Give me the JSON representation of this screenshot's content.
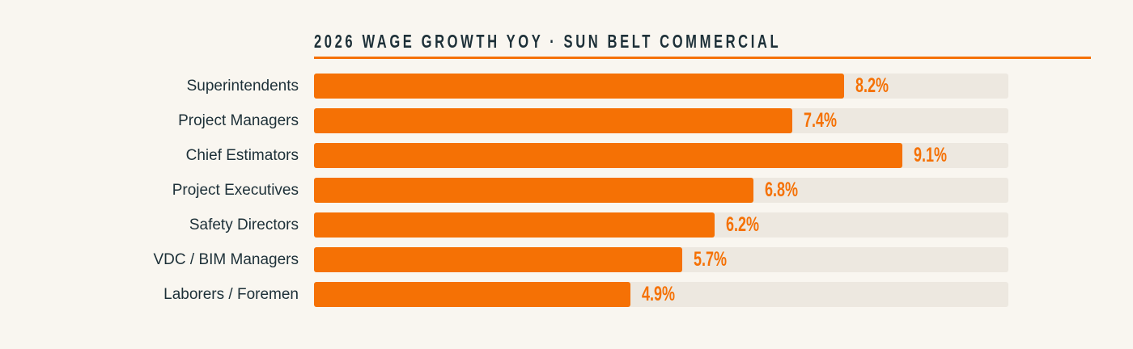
{
  "chart_data": {
    "type": "bar",
    "orientation": "horizontal",
    "title": "2026 WAGE GROWTH YOY · SUN BELT COMMERCIAL",
    "categories": [
      "Superintendents",
      "Project Managers",
      "Chief Estimators",
      "Project Executives",
      "Safety Directors",
      "VDC / BIM Managers",
      "Laborers / Foremen"
    ],
    "values": [
      8.2,
      7.4,
      9.1,
      6.8,
      6.2,
      5.7,
      4.9
    ],
    "value_labels": [
      "8.2%",
      "7.4%",
      "9.1%",
      "6.8%",
      "6.2%",
      "5.7%",
      "4.9%"
    ],
    "unit": "%",
    "xlim": [
      0,
      10.74
    ],
    "grid": false,
    "colors": {
      "bar": "#f57105",
      "track": "#ede8e0",
      "text": "#1d3038",
      "background": "#f9f6f0"
    }
  }
}
